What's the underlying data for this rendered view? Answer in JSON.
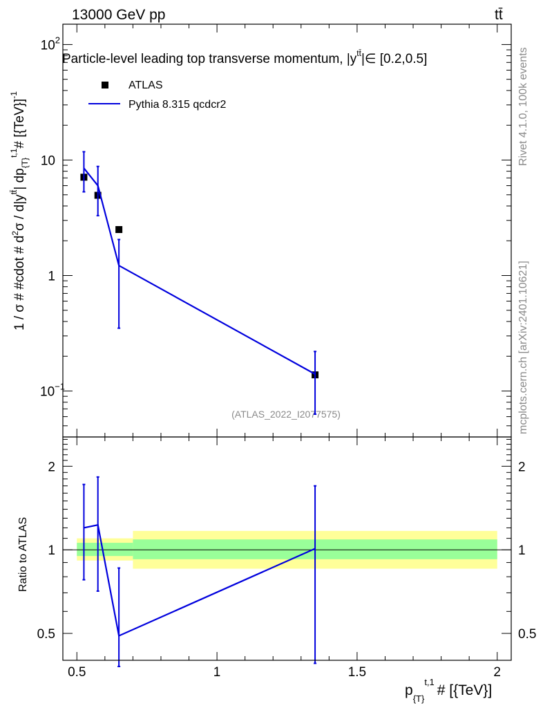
{
  "header": {
    "energy_label": "13000 GeV pp",
    "process_label": "tt̄"
  },
  "side_labels": {
    "rivet": "Rivet 4.1.0,  100k events",
    "mcplots": "mcplots.cern.ch [arXiv:2401.10621]"
  },
  "chart_data": [
    {
      "type": "scatter",
      "title": "Particle-level leading top transverse momentum, |y^{tt̄}|∈ [0.2,0.5]",
      "title_main": "Particle-level leading top transverse momentum, |y",
      "title_sup": "tt̄",
      "title_tail": "|∈ [0.2,0.5]",
      "xlabel": "p_{T}^{t,1} # [{TeV}]",
      "xlabel_main": "p",
      "xlabel_sub": "{T}",
      "xlabel_sup": "t,1",
      "xlabel_tail": "# [{TeV}]",
      "ylabel": "1 / σ # #cdot # d²σ / d|y^{tt̄}| dp_{T}^{t,1} # [{TeV}]^{-1}",
      "ylabel_a": "1 / σ # #cdot # d",
      "ylabel_b": "σ / d|y",
      "ylabel_c": "| dp",
      "ylabel_d": "# [{TeV}]",
      "yscale": "log",
      "xlim": [
        0.45,
        2.05
      ],
      "ylim": [
        0.04,
        150
      ],
      "x_ticks": [
        0.5,
        1,
        1.5,
        2
      ],
      "y_tick_labels": [
        {
          "value": 100,
          "base": "10",
          "exp": "2"
        },
        {
          "value": 10,
          "base": "10",
          "exp": ""
        },
        {
          "value": 1,
          "base": "1",
          "exp": ""
        },
        {
          "value": 0.1,
          "base": "10",
          "exp": "−1"
        }
      ],
      "legend": [
        "ATLAS",
        "Pythia 8.315 qcdcr2"
      ],
      "legend_position": "top-left",
      "watermark": "(ATLAS_2022_I2077575)",
      "series": [
        {
          "name": "ATLAS",
          "style": "markers",
          "color": "#000000",
          "x": [
            0.525,
            0.575,
            0.65,
            1.35
          ],
          "y": [
            7.1,
            4.95,
            2.5,
            0.138
          ]
        },
        {
          "name": "Pythia 8.315 qcdcr2",
          "style": "line",
          "color": "#0000dd",
          "x": [
            0.525,
            0.575,
            0.65,
            1.35
          ],
          "y": [
            8.5,
            6.0,
            1.22,
            0.14
          ],
          "yerr_low": [
            5.3,
            3.3,
            0.35,
            0.063
          ],
          "yerr_high": [
            11.8,
            8.8,
            2.05,
            0.22
          ]
        }
      ]
    },
    {
      "type": "line",
      "ylabel": "Ratio to ATLAS",
      "yscale": "log",
      "xlim": [
        0.45,
        2.05
      ],
      "ylim": [
        0.4,
        2.55
      ],
      "y_ticks": [
        0.5,
        1,
        2
      ],
      "y_tick_labels": [
        "0.5",
        "1",
        "2"
      ],
      "x_tick_labels": [
        "0.5",
        "1",
        "1.5",
        "2"
      ],
      "reference_line": 1,
      "bands": [
        {
          "x0": 0.5,
          "x1": 0.7,
          "inner": [
            0.95,
            1.06
          ],
          "outer": [
            0.915,
            1.1
          ]
        },
        {
          "x0": 0.7,
          "x1": 2.0,
          "inner": [
            0.925,
            1.09
          ],
          "outer": [
            0.855,
            1.17
          ]
        }
      ],
      "series": [
        {
          "name": "Pythia 8.315 qcdcr2",
          "color": "#0000dd",
          "x": [
            0.525,
            0.575,
            0.65,
            1.35
          ],
          "y": [
            1.2,
            1.23,
            0.49,
            1.01
          ],
          "yerr_low": [
            0.78,
            0.71,
            0.38,
            0.39
          ],
          "yerr_high": [
            1.72,
            1.83,
            0.86,
            1.7
          ]
        }
      ]
    }
  ]
}
